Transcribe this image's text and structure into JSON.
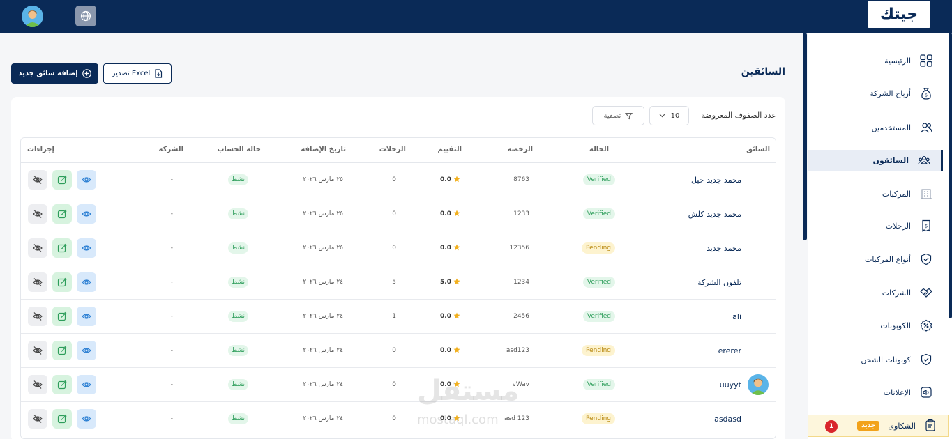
{
  "header": {
    "logo_text": "جيتك",
    "avatar_icon": "user-avatar",
    "language_icon": "globe-icon"
  },
  "sidebar": {
    "items": [
      {
        "label": "الرئيسية",
        "icon": "grid-icon"
      },
      {
        "label": "أرباح الشركة",
        "icon": "money-bag-icon"
      },
      {
        "label": "المستخدمين",
        "icon": "users-icon"
      },
      {
        "label": "السائقون",
        "icon": "drivers-icon",
        "active": true
      },
      {
        "label": "المركبات",
        "icon": "building-icon"
      },
      {
        "label": "الرحلات",
        "icon": "receipt-icon"
      },
      {
        "label": "أنواع المركبات",
        "icon": "shield-check-icon"
      },
      {
        "label": "الشركات",
        "icon": "handshake-icon"
      },
      {
        "label": "الكوبونات",
        "icon": "percent-icon"
      },
      {
        "label": "كوبونات الشحن",
        "icon": "shield-check-icon"
      },
      {
        "label": "الإعلانات",
        "icon": "megaphone-icon"
      }
    ],
    "complaints": {
      "label": "الشكاوى",
      "badge": "جديد",
      "count": "1"
    }
  },
  "page": {
    "title": "السائقين",
    "add_button": "إضافة سائق جديد",
    "export_button": "تصدير Excel",
    "rows_label": "عدد الصفوف المعروضة",
    "rows_value": "10",
    "filter_button": "تصفية"
  },
  "table": {
    "columns": [
      "السائق",
      "الحالة",
      "الرخصة",
      "التقييم",
      "الرحلات",
      "تاريخ الإضافة",
      "حالة الحساب",
      "الشركة",
      "إجراءات"
    ],
    "rows": [
      {
        "name": "محمد جديد حيل",
        "status": "Verified",
        "license": "8763",
        "rating": "0.0",
        "trips": "0",
        "date": "٢٥ مارس ٢٠٢٦",
        "account": "نشط",
        "company": "-"
      },
      {
        "name": "محمد جديد كلش",
        "status": "Verified",
        "license": "1233",
        "rating": "0.0",
        "trips": "0",
        "date": "٢٥ مارس ٢٠٢٦",
        "account": "نشط",
        "company": "-"
      },
      {
        "name": "محمد جديد",
        "status": "Pending",
        "license": "12356",
        "rating": "0.0",
        "trips": "0",
        "date": "٢٥ مارس ٢٠٢٦",
        "account": "نشط",
        "company": "-"
      },
      {
        "name": "تلفون الشركة",
        "status": "Verified",
        "license": "1234",
        "rating": "5.0",
        "trips": "5",
        "date": "٢٤ مارس ٢٠٢٦",
        "account": "نشط",
        "company": "-"
      },
      {
        "name": "ali",
        "status": "Verified",
        "license": "2456",
        "rating": "0.0",
        "trips": "1",
        "date": "٢٤ مارس ٢٠٢٦",
        "account": "نشط",
        "company": "-"
      },
      {
        "name": "ererer",
        "status": "Pending",
        "license": "asd123",
        "rating": "0.0",
        "trips": "0",
        "date": "٢٤ مارس ٢٠٢٦",
        "account": "نشط",
        "company": "-"
      },
      {
        "name": "uuyyt",
        "status": "Verified",
        "license": "vWav",
        "rating": "0.0",
        "trips": "0",
        "date": "٢٤ مارس ٢٠٢٦",
        "account": "نشط",
        "company": "-",
        "has_avatar": true
      },
      {
        "name": "asdasd",
        "status": "Pending",
        "license": "asd 123",
        "rating": "0.0",
        "trips": "0",
        "date": "٢٤ مارس ٢٠٢٦",
        "account": "نشط",
        "company": "-"
      }
    ]
  },
  "watermark": {
    "text": "مستقل",
    "sub": "mostaql.com"
  },
  "colors": {
    "primary": "#0a2a57",
    "verified": "#2d9d5a",
    "pending": "#b7860b",
    "star": "#f2b01e"
  }
}
